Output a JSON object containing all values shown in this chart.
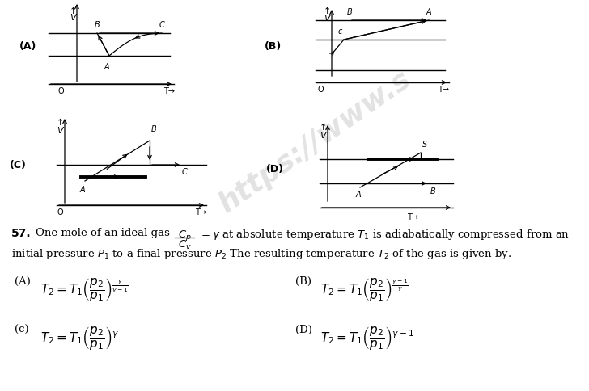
{
  "background_color": "#ffffff",
  "fig_width": 7.28,
  "fig_height": 4.85,
  "dpi": 100,
  "watermark": "https://www.s",
  "q57_line1_prefix": "57.",
  "q57_line1_mid": "One mole of an ideal gas",
  "q57_line1_suffix": "$= \\gamma$ at absolute temperature $T_1$ is adiabatically compressed from an",
  "q57_line2": "initial pressure $P_1$ to a final pressure $P_2$ The resulting temperature $T_2$ of the gas is given by.",
  "optA_label": "(A)",
  "optA_expr": "$T_2 = T_1 \\left(\\dfrac{p_2}{p_1}\\right)^{\\frac{\\gamma}{\\gamma-1}}$",
  "optB_label": "(B)",
  "optB_expr": "$T_2 = T_1 \\left(\\dfrac{p_2}{p_1}\\right)^{\\frac{\\gamma-1}{\\gamma}}$",
  "optC_label": "(c)",
  "optC_expr": "$T_2 = T_1 \\left(\\dfrac{p_2}{p_1}\\right)^{\\gamma}$",
  "optD_label": "(D)",
  "optD_expr": "$T_2 = T_1 \\left(\\dfrac{p_2}{p_1}\\right)^{\\gamma-1}$",
  "cp_label": "$C_p$",
  "cv_label": "$C_v$"
}
